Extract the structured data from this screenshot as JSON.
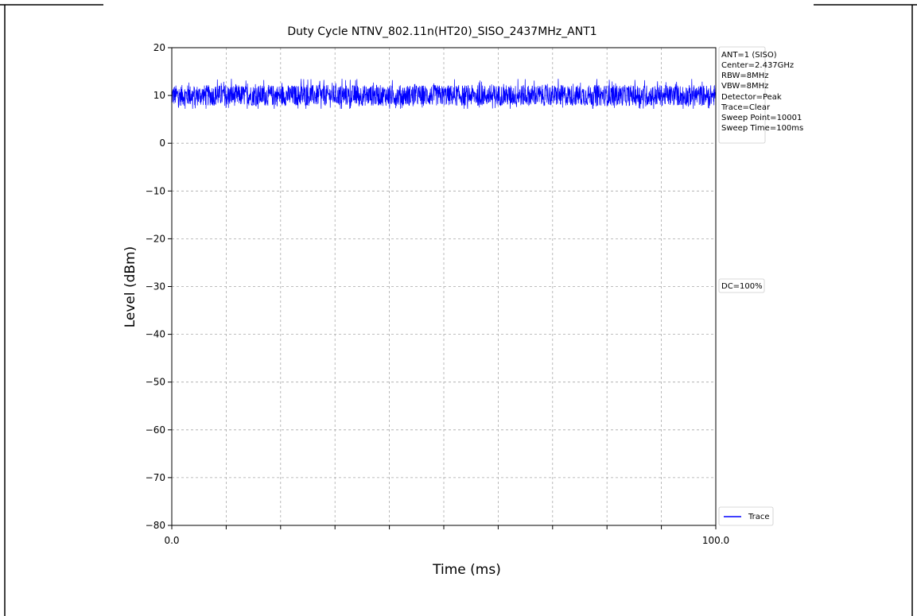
{
  "chart_data": {
    "type": "line",
    "title": "Duty Cycle NTNV_802.11n(HT20)_SISO_2437MHz_ANT1",
    "xlabel": "Time (ms)",
    "ylabel": "Level (dBm)",
    "xlim": [
      0,
      100
    ],
    "ylim": [
      -80,
      20
    ],
    "x_tick_labels": [
      "0.0",
      "100.0"
    ],
    "x_minor_ticks": [
      0,
      10,
      20,
      30,
      40,
      50,
      60,
      70,
      80,
      90,
      100
    ],
    "y_ticks": [
      20,
      10,
      0,
      -10,
      -20,
      -30,
      -40,
      -50,
      -60,
      -70,
      -80
    ],
    "y_tick_labels": [
      "20",
      "10",
      "0",
      "−10",
      "−20",
      "−30",
      "−40",
      "−50",
      "−60",
      "−70",
      "−80"
    ],
    "grid": true,
    "series": [
      {
        "name": "Trace",
        "color": "#0000ff",
        "description_points": 10001,
        "x_range": [
          0,
          100
        ],
        "mean": 10,
        "min": 7.2,
        "max": 13.5
      }
    ],
    "legend": {
      "location": "lower-right-outside",
      "entries": [
        "Trace"
      ]
    },
    "info_box": [
      "ANT=1 (SISO)",
      "Center=2.437GHz",
      "RBW=8MHz",
      "VBW=8MHz",
      "Detector=Peak",
      "Trace=Clear",
      "Sweep Point=10001",
      "Sweep Time=100ms"
    ],
    "dc_label": "DC=100%"
  }
}
